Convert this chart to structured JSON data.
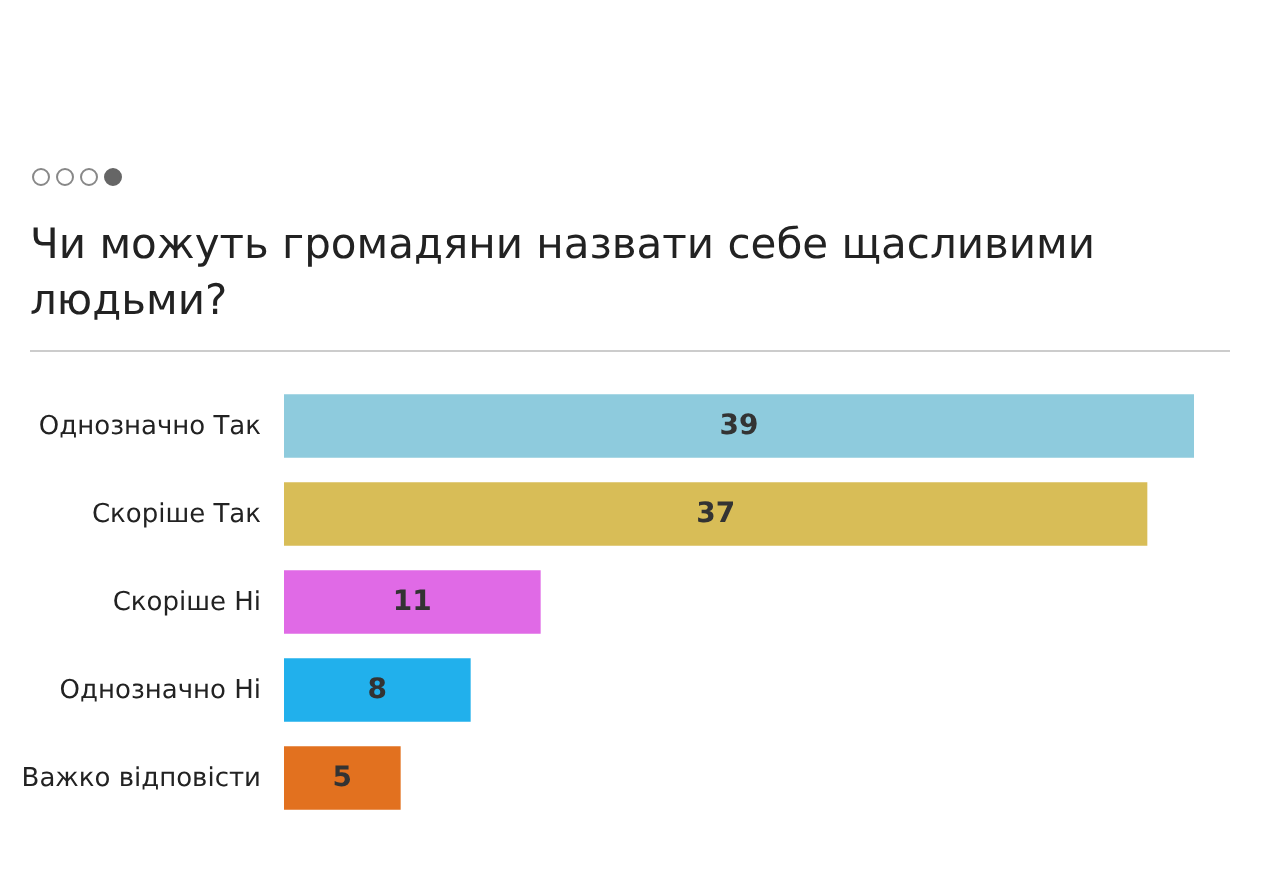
{
  "chart_data": {
    "type": "bar",
    "orientation": "horizontal",
    "title": "Чи можуть громадяни назвати себе щасливими людьми?",
    "categories": [
      "Однозначно Так",
      "Скоріше Так",
      "Скоріше Ні",
      "Однозначно Ні",
      "Важко відповісти"
    ],
    "values": [
      39,
      37,
      11,
      8,
      5
    ],
    "colors": [
      "#8ecbdd",
      "#d8bd57",
      "#e06ae6",
      "#21b0ec",
      "#e2711f"
    ],
    "data_labels": true
  }
}
